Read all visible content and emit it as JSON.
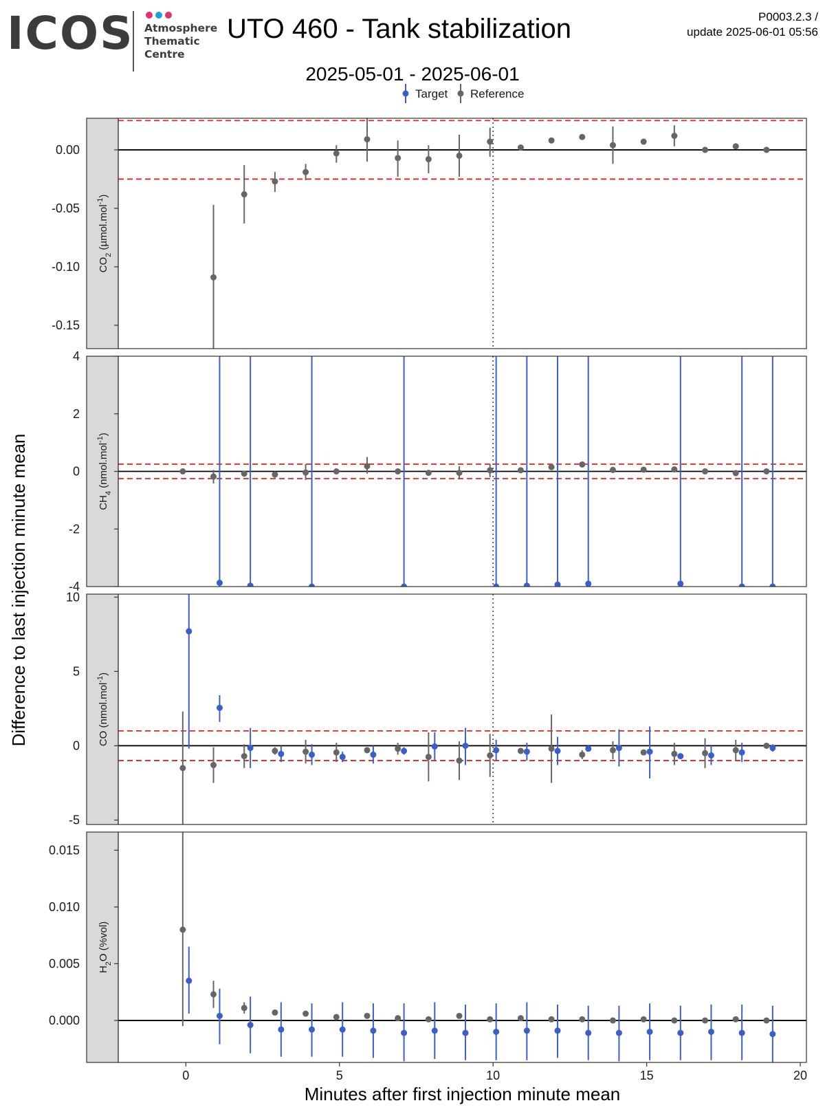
{
  "header": {
    "logo_text": "ICOS",
    "logo_lines": [
      "Atmosphere",
      "Thematic",
      "Centre"
    ],
    "logo_dot_colors": [
      "#e3336f",
      "#1aa3d9",
      "#e3336f"
    ],
    "title": "UTO 460 - Tank stabilization",
    "version_line1": "P0003.2.3 /",
    "version_line2": "update  2025-06-01 05:56",
    "subtitle": "2025-05-01 - 2025-06-01"
  },
  "chart_data": {
    "type": "scatter",
    "xlabel": "Minutes after first injection minute mean",
    "ylabel": "Difference to last injection minute mean",
    "xlim": [
      -2.2,
      20.2
    ],
    "xticks": [
      0,
      5,
      10,
      15,
      20
    ],
    "vline_x": 10,
    "legend": {
      "placement": "top-center",
      "entries": [
        {
          "name": "Target",
          "color": "#3a5fcd"
        },
        {
          "name": "Reference",
          "color": "#666666"
        }
      ]
    },
    "panels": [
      {
        "strip": "CO2 (µmol.mol-1)",
        "strip_main": "CO",
        "strip_sub": "2",
        "strip_unit": " (µmol.mol",
        "strip_sup": "-1",
        "strip_close": ")",
        "ylim": [
          -0.17,
          0.027
        ],
        "yticks": [
          -0.15,
          -0.1,
          -0.05,
          0.0
        ],
        "ytick_labels": [
          "-0.15",
          "-0.10",
          "-0.05",
          "0.00"
        ],
        "threshold": 0.025,
        "reference": [
          {
            "x": 0.9,
            "y": -0.109,
            "lo": -0.17,
            "hi": -0.047
          },
          {
            "x": 1.9,
            "y": -0.038,
            "lo": -0.063,
            "hi": -0.013
          },
          {
            "x": 2.9,
            "y": -0.027,
            "lo": -0.036,
            "hi": -0.019
          },
          {
            "x": 3.9,
            "y": -0.019,
            "lo": -0.026,
            "hi": -0.012
          },
          {
            "x": 4.9,
            "y": -0.003,
            "lo": -0.011,
            "hi": 0.004
          },
          {
            "x": 5.9,
            "y": 0.009,
            "lo": -0.01,
            "hi": 0.027
          },
          {
            "x": 6.9,
            "y": -0.007,
            "lo": -0.023,
            "hi": 0.008
          },
          {
            "x": 7.9,
            "y": -0.008,
            "lo": -0.02,
            "hi": 0.004
          },
          {
            "x": 8.9,
            "y": -0.005,
            "lo": -0.023,
            "hi": 0.013
          },
          {
            "x": 9.9,
            "y": 0.007,
            "lo": -0.006,
            "hi": 0.019
          },
          {
            "x": 10.9,
            "y": 0.002,
            "lo": 0.001,
            "hi": 0.003
          },
          {
            "x": 11.9,
            "y": 0.008,
            "lo": 0.007,
            "hi": 0.009
          },
          {
            "x": 12.9,
            "y": 0.011,
            "lo": 0.01,
            "hi": 0.012
          },
          {
            "x": 13.9,
            "y": 0.004,
            "lo": -0.012,
            "hi": 0.02
          },
          {
            "x": 14.9,
            "y": 0.007,
            "lo": 0.006,
            "hi": 0.008
          },
          {
            "x": 15.9,
            "y": 0.012,
            "lo": 0.003,
            "hi": 0.021
          },
          {
            "x": 16.9,
            "y": 0.0,
            "lo": -0.002,
            "hi": 0.001
          },
          {
            "x": 17.9,
            "y": 0.003,
            "lo": 0.001,
            "hi": 0.005
          },
          {
            "x": 18.9,
            "y": 0.0,
            "lo": -0.001,
            "hi": 0.001
          }
        ],
        "target": []
      },
      {
        "strip": "CH4 (nmol.mol-1)",
        "strip_main": "CH",
        "strip_sub": "4",
        "strip_unit": " (nmol.mol",
        "strip_sup": "-1",
        "strip_close": ")",
        "ylim": [
          -4,
          4
        ],
        "yticks": [
          -4,
          -2,
          0,
          2,
          4
        ],
        "ytick_labels": [
          "-4",
          "-2",
          "0",
          "2",
          "4"
        ],
        "threshold": 0.25,
        "reference": [
          {
            "x": -0.1,
            "y": 0.0,
            "lo": 0.0,
            "hi": 0.0
          },
          {
            "x": 0.9,
            "y": -0.18,
            "lo": -0.42,
            "hi": 0.05
          },
          {
            "x": 1.9,
            "y": -0.08,
            "lo": -0.15,
            "hi": -0.01
          },
          {
            "x": 2.9,
            "y": -0.11,
            "lo": -0.22,
            "hi": 0.0
          },
          {
            "x": 3.9,
            "y": -0.04,
            "lo": -0.3,
            "hi": 0.25
          },
          {
            "x": 4.9,
            "y": 0.0,
            "lo": -0.08,
            "hi": 0.08
          },
          {
            "x": 5.9,
            "y": 0.18,
            "lo": -0.08,
            "hi": 0.5
          },
          {
            "x": 6.9,
            "y": 0.0,
            "lo": -0.05,
            "hi": 0.05
          },
          {
            "x": 7.9,
            "y": -0.05,
            "lo": -0.1,
            "hi": 0.0
          },
          {
            "x": 8.9,
            "y": -0.05,
            "lo": -0.28,
            "hi": 0.18
          },
          {
            "x": 9.9,
            "y": 0.04,
            "lo": -0.2,
            "hi": 0.25
          },
          {
            "x": 10.9,
            "y": 0.04,
            "lo": -0.05,
            "hi": 0.12
          },
          {
            "x": 11.9,
            "y": 0.15,
            "lo": 0.05,
            "hi": 0.25
          },
          {
            "x": 12.9,
            "y": 0.24,
            "lo": 0.2,
            "hi": 0.28
          },
          {
            "x": 13.9,
            "y": 0.05,
            "lo": 0.0,
            "hi": 0.1
          },
          {
            "x": 14.9,
            "y": 0.06,
            "lo": 0.0,
            "hi": 0.12
          },
          {
            "x": 15.9,
            "y": 0.07,
            "lo": 0.0,
            "hi": 0.14
          },
          {
            "x": 16.9,
            "y": 0.0,
            "lo": -0.05,
            "hi": 0.05
          },
          {
            "x": 17.9,
            "y": -0.06,
            "lo": -0.1,
            "hi": -0.02
          },
          {
            "x": 18.9,
            "y": 0.0,
            "lo": -0.04,
            "hi": 0.04
          }
        ],
        "target": [
          {
            "x": 1.1,
            "y": -3.87,
            "lo": -4.2,
            "hi": 4.2
          },
          {
            "x": 2.1,
            "y": -3.97,
            "lo": -4.2,
            "hi": 4.2
          },
          {
            "x": 4.1,
            "y": -4.0,
            "lo": -4.2,
            "hi": 4.2
          },
          {
            "x": 7.1,
            "y": -4.0,
            "lo": -4.2,
            "hi": 4.2
          },
          {
            "x": 10.1,
            "y": -4.0,
            "lo": -4.2,
            "hi": 4.2
          },
          {
            "x": 11.1,
            "y": -3.97,
            "lo": -4.2,
            "hi": 4.2
          },
          {
            "x": 12.1,
            "y": -3.93,
            "lo": -4.2,
            "hi": 4.2
          },
          {
            "x": 13.1,
            "y": -3.9,
            "lo": -4.2,
            "hi": 4.2
          },
          {
            "x": 16.1,
            "y": -3.9,
            "lo": -4.2,
            "hi": 4.2
          },
          {
            "x": 18.1,
            "y": -4.0,
            "lo": -4.2,
            "hi": 4.2
          },
          {
            "x": 19.1,
            "y": -4.0,
            "lo": -4.2,
            "hi": 4.2
          }
        ]
      },
      {
        "strip": "CO (nmol.mol-1)",
        "strip_main": "CO",
        "strip_sub": "",
        "strip_unit": " (nmol.mol",
        "strip_sup": "-1",
        "strip_close": ")",
        "ylim": [
          -5.3,
          10.2
        ],
        "yticks": [
          -5,
          0,
          5,
          10
        ],
        "ytick_labels": [
          "-5",
          "0",
          "5",
          "10"
        ],
        "threshold": 1.0,
        "reference": [
          {
            "x": -0.1,
            "y": -1.5,
            "lo": -5.3,
            "hi": 2.3
          },
          {
            "x": 0.9,
            "y": -1.3,
            "lo": -2.5,
            "hi": -0.1
          },
          {
            "x": 1.9,
            "y": -0.7,
            "lo": -1.5,
            "hi": 0.1
          },
          {
            "x": 2.9,
            "y": -0.35,
            "lo": -0.6,
            "hi": -0.1
          },
          {
            "x": 3.9,
            "y": -0.4,
            "lo": -1.2,
            "hi": 0.4
          },
          {
            "x": 4.9,
            "y": -0.45,
            "lo": -1.1,
            "hi": 0.2
          },
          {
            "x": 5.9,
            "y": -0.3,
            "lo": -0.5,
            "hi": -0.1
          },
          {
            "x": 6.9,
            "y": -0.2,
            "lo": -0.6,
            "hi": 0.2
          },
          {
            "x": 7.9,
            "y": -0.75,
            "lo": -2.4,
            "hi": 0.9
          },
          {
            "x": 8.9,
            "y": -1.0,
            "lo": -2.3,
            "hi": 0.3
          },
          {
            "x": 9.9,
            "y": -0.65,
            "lo": -2.1,
            "hi": 0.8
          },
          {
            "x": 10.9,
            "y": -0.35,
            "lo": -0.5,
            "hi": -0.2
          },
          {
            "x": 11.9,
            "y": -0.2,
            "lo": -2.5,
            "hi": 2.1
          },
          {
            "x": 12.9,
            "y": -0.6,
            "lo": -0.9,
            "hi": -0.3
          },
          {
            "x": 13.9,
            "y": -0.3,
            "lo": -0.9,
            "hi": 0.3
          },
          {
            "x": 14.9,
            "y": -0.45,
            "lo": -0.6,
            "hi": -0.3
          },
          {
            "x": 15.9,
            "y": -0.55,
            "lo": -1.3,
            "hi": 0.2
          },
          {
            "x": 16.9,
            "y": -0.5,
            "lo": -1.5,
            "hi": 0.5
          },
          {
            "x": 17.9,
            "y": -0.3,
            "lo": -1.0,
            "hi": 0.4
          },
          {
            "x": 18.9,
            "y": 0.0,
            "lo": -0.1,
            "hi": 0.1
          }
        ],
        "target": [
          {
            "x": 0.1,
            "y": 7.7,
            "lo": -0.2,
            "hi": 10.2
          },
          {
            "x": 1.1,
            "y": 2.55,
            "lo": 1.6,
            "hi": 3.4
          },
          {
            "x": 2.1,
            "y": -0.15,
            "lo": -1.5,
            "hi": 1.2
          },
          {
            "x": 3.1,
            "y": -0.55,
            "lo": -1.1,
            "hi": 0.0
          },
          {
            "x": 4.1,
            "y": -0.6,
            "lo": -1.3,
            "hi": 0.1
          },
          {
            "x": 5.1,
            "y": -0.75,
            "lo": -1.1,
            "hi": -0.4
          },
          {
            "x": 6.1,
            "y": -0.6,
            "lo": -1.2,
            "hi": 0.0
          },
          {
            "x": 7.1,
            "y": -0.35,
            "lo": -0.6,
            "hi": -0.1
          },
          {
            "x": 8.1,
            "y": -0.05,
            "lo": -1.0,
            "hi": 0.9
          },
          {
            "x": 9.1,
            "y": 0.0,
            "lo": -1.3,
            "hi": 1.2
          },
          {
            "x": 10.1,
            "y": -0.3,
            "lo": -1.0,
            "hi": 0.4
          },
          {
            "x": 11.1,
            "y": -0.4,
            "lo": -1.0,
            "hi": 0.2
          },
          {
            "x": 12.1,
            "y": -0.35,
            "lo": -1.3,
            "hi": 0.6
          },
          {
            "x": 13.1,
            "y": -0.2,
            "lo": -0.3,
            "hi": -0.1
          },
          {
            "x": 14.1,
            "y": -0.15,
            "lo": -1.4,
            "hi": 1.1
          },
          {
            "x": 15.1,
            "y": -0.4,
            "lo": -2.2,
            "hi": 1.3
          },
          {
            "x": 16.1,
            "y": -0.7,
            "lo": -0.8,
            "hi": -0.6
          },
          {
            "x": 17.1,
            "y": -0.65,
            "lo": -1.3,
            "hi": 0.0
          },
          {
            "x": 18.1,
            "y": -0.45,
            "lo": -1.1,
            "hi": 0.2
          },
          {
            "x": 19.1,
            "y": -0.15,
            "lo": -0.4,
            "hi": 0.1
          }
        ]
      },
      {
        "strip": "H2O (%vol)",
        "strip_main": "H",
        "strip_sub": "2",
        "strip_unit": "O (%vol)",
        "strip_sup": "",
        "strip_close": "",
        "ylim": [
          -0.0037,
          0.0166
        ],
        "yticks": [
          0.0,
          0.005,
          0.01,
          0.015
        ],
        "ytick_labels": [
          "0.000",
          "0.005",
          "0.010",
          "0.015"
        ],
        "threshold": null,
        "reference": [
          {
            "x": -0.1,
            "y": 0.008,
            "lo": -0.0005,
            "hi": 0.0166
          },
          {
            "x": 0.9,
            "y": 0.0023,
            "lo": 0.0011,
            "hi": 0.0035
          },
          {
            "x": 1.9,
            "y": 0.0011,
            "lo": 0.0006,
            "hi": 0.0016
          },
          {
            "x": 2.9,
            "y": 0.0007,
            "lo": 0.0006,
            "hi": 0.0008
          },
          {
            "x": 3.9,
            "y": 0.0006,
            "lo": 0.0005,
            "hi": 0.0007
          },
          {
            "x": 4.9,
            "y": 0.0003,
            "lo": 0.0002,
            "hi": 0.0004
          },
          {
            "x": 5.9,
            "y": 0.0004,
            "lo": 0.0003,
            "hi": 0.0005
          },
          {
            "x": 6.9,
            "y": 0.0002,
            "lo": 0.0001,
            "hi": 0.0003
          },
          {
            "x": 7.9,
            "y": 0.0001,
            "lo": 0.0,
            "hi": 0.0002
          },
          {
            "x": 8.9,
            "y": 0.0004,
            "lo": 0.0003,
            "hi": 0.0005
          },
          {
            "x": 9.9,
            "y": 0.0001,
            "lo": 0.0,
            "hi": 0.0002
          },
          {
            "x": 10.9,
            "y": 0.0002,
            "lo": 0.0001,
            "hi": 0.0003
          },
          {
            "x": 11.9,
            "y": 0.0001,
            "lo": 0.0,
            "hi": 0.0002
          },
          {
            "x": 12.9,
            "y": 0.0001,
            "lo": 0.0,
            "hi": 0.0002
          },
          {
            "x": 13.9,
            "y": 0.0,
            "lo": -0.0001,
            "hi": 0.0001
          },
          {
            "x": 14.9,
            "y": 0.0001,
            "lo": 0.0,
            "hi": 0.0002
          },
          {
            "x": 15.9,
            "y": 0.0,
            "lo": -0.0001,
            "hi": 0.0001
          },
          {
            "x": 16.9,
            "y": 0.0,
            "lo": -0.0001,
            "hi": 0.0001
          },
          {
            "x": 17.9,
            "y": 0.0001,
            "lo": 0.0,
            "hi": 0.0002
          },
          {
            "x": 18.9,
            "y": 0.0,
            "lo": -0.0001,
            "hi": 0.0001
          }
        ],
        "target": [
          {
            "x": 0.1,
            "y": 0.0035,
            "lo": 0.0006,
            "hi": 0.0065
          },
          {
            "x": 1.1,
            "y": 0.0004,
            "lo": -0.0021,
            "hi": 0.0028
          },
          {
            "x": 2.1,
            "y": -0.0004,
            "lo": -0.0029,
            "hi": 0.0021
          },
          {
            "x": 3.1,
            "y": -0.0008,
            "lo": -0.0032,
            "hi": 0.0016
          },
          {
            "x": 4.1,
            "y": -0.0008,
            "lo": -0.0032,
            "hi": 0.0015
          },
          {
            "x": 5.1,
            "y": -0.0008,
            "lo": -0.0032,
            "hi": 0.0016
          },
          {
            "x": 6.1,
            "y": -0.0009,
            "lo": -0.0033,
            "hi": 0.0015
          },
          {
            "x": 7.1,
            "y": -0.0011,
            "lo": -0.0036,
            "hi": 0.0015
          },
          {
            "x": 8.1,
            "y": -0.0009,
            "lo": -0.0034,
            "hi": 0.0016
          },
          {
            "x": 9.1,
            "y": -0.0011,
            "lo": -0.0035,
            "hi": 0.0014
          },
          {
            "x": 10.1,
            "y": -0.001,
            "lo": -0.0035,
            "hi": 0.0015
          },
          {
            "x": 11.1,
            "y": -0.0009,
            "lo": -0.0035,
            "hi": 0.0016
          },
          {
            "x": 12.1,
            "y": -0.0009,
            "lo": -0.0033,
            "hi": 0.0014
          },
          {
            "x": 13.1,
            "y": -0.0011,
            "lo": -0.0035,
            "hi": 0.0013
          },
          {
            "x": 14.1,
            "y": -0.0011,
            "lo": -0.0036,
            "hi": 0.0013
          },
          {
            "x": 15.1,
            "y": -0.001,
            "lo": -0.0035,
            "hi": 0.0015
          },
          {
            "x": 16.1,
            "y": -0.0011,
            "lo": -0.0035,
            "hi": 0.0013
          },
          {
            "x": 17.1,
            "y": -0.001,
            "lo": -0.0035,
            "hi": 0.0014
          },
          {
            "x": 18.1,
            "y": -0.0011,
            "lo": -0.0035,
            "hi": 0.0014
          },
          {
            "x": 19.1,
            "y": -0.0012,
            "lo": -0.0037,
            "hi": 0.0013
          }
        ]
      }
    ]
  }
}
